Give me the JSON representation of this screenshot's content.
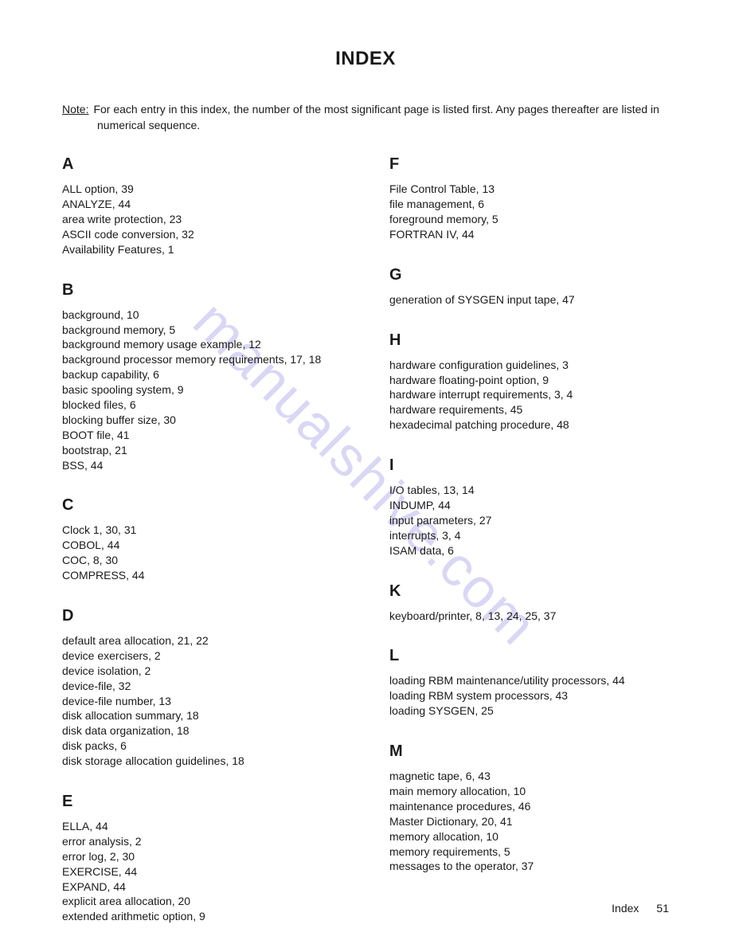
{
  "title": "INDEX",
  "note": {
    "label": "Note:",
    "line1": "For each entry in this index, the number of the most significant page is listed first. Any pages thereafter are listed in",
    "line2": "numerical sequence."
  },
  "watermark": "manualshive.com",
  "footer": {
    "label": "Index",
    "page": "51"
  },
  "left": [
    {
      "letter": "A",
      "entries": [
        "ALL option, 39",
        "ANALYZE, 44",
        "area write protection, 23",
        "ASCII code conversion, 32",
        "Availability Features, 1"
      ]
    },
    {
      "letter": "B",
      "entries": [
        "background, 10",
        "background memory, 5",
        "background memory usage example, 12",
        "background processor memory requirements, 17, 18",
        "backup capability, 6",
        "basic spooling system, 9",
        "blocked files, 6",
        "blocking buffer size, 30",
        "BOOT file, 41",
        "bootstrap, 21",
        "BSS, 44"
      ]
    },
    {
      "letter": "C",
      "entries": [
        "Clock 1, 30, 31",
        "COBOL, 44",
        "COC, 8, 30",
        "COMPRESS, 44"
      ]
    },
    {
      "letter": "D",
      "entries": [
        "default area allocation, 21, 22",
        "device exercisers, 2",
        "device isolation, 2",
        "device-file, 32",
        "device-file number, 13",
        "disk allocation summary, 18",
        "disk data organization, 18",
        "disk packs, 6",
        "disk storage allocation guidelines, 18"
      ]
    },
    {
      "letter": "E",
      "entries": [
        "ELLA, 44",
        "error analysis, 2",
        "error log, 2, 30",
        "EXERCISE, 44",
        "EXPAND, 44",
        "explicit area allocation, 20",
        "extended arithmetic option, 9"
      ]
    }
  ],
  "right": [
    {
      "letter": "F",
      "entries": [
        "File Control Table, 13",
        "file management, 6",
        "foreground memory, 5",
        "FORTRAN IV, 44"
      ]
    },
    {
      "letter": "G",
      "entries": [
        "generation of SYSGEN input tape, 47"
      ]
    },
    {
      "letter": "H",
      "entries": [
        "hardware configuration guidelines, 3",
        "hardware floating-point option, 9",
        "hardware interrupt requirements, 3, 4",
        "hardware requirements, 45",
        "hexadecimal patching procedure, 48"
      ]
    },
    {
      "letter": "I",
      "entries": [
        "I/O tables, 13, 14",
        "INDUMP, 44",
        "input parameters, 27",
        "interrupts, 3, 4",
        "ISAM data, 6"
      ]
    },
    {
      "letter": "K",
      "entries": [
        "keyboard/printer, 8, 13, 24, 25, 37"
      ]
    },
    {
      "letter": "L",
      "entries": [
        "loading RBM maintenance/utility processors, 44",
        "loading RBM system processors, 43",
        "loading SYSGEN, 25"
      ]
    },
    {
      "letter": "M",
      "entries": [
        "magnetic tape, 6, 43",
        "main memory allocation, 10",
        "maintenance procedures, 46",
        "Master Dictionary, 20, 41",
        "memory allocation, 10",
        "memory requirements, 5",
        "messages to the operator, 37"
      ]
    }
  ]
}
